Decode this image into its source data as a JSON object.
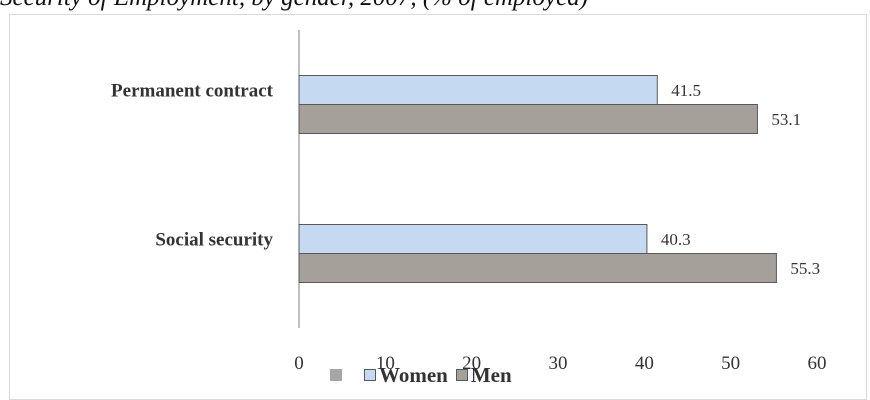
{
  "chart_data": {
    "type": "bar",
    "orientation": "horizontal",
    "title": "Security of Employment, by gender, 2007, (% of employed)",
    "categories": [
      "Permanent contract",
      "Social security"
    ],
    "series": [
      {
        "name": "Women",
        "values": [
          41.5,
          40.3
        ],
        "color": "#c5d9f1"
      },
      {
        "name": "Men",
        "values": [
          53.1,
          55.3
        ],
        "color": "#a6a09b"
      }
    ],
    "xlim": [
      0,
      60
    ],
    "xticks": [
      0,
      10,
      20,
      30,
      40,
      50,
      60
    ],
    "grid": false,
    "legend_position": "bottom",
    "legend_extra_marker_color": "#a6a6a6"
  }
}
